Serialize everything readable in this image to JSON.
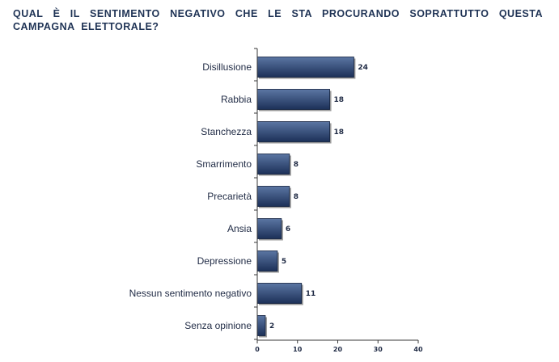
{
  "chart_data": {
    "type": "bar",
    "orientation": "horizontal",
    "title": "QUAL È IL SENTIMENTO NEGATIVO CHE LE STA PROCURANDO SOPRATTUTTO QUESTA CAMPAGNA ELETTORALE?",
    "categories": [
      "Disillusione",
      "Rabbia",
      "Stanchezza",
      "Smarrimento",
      "Precarietà",
      "Ansia",
      "Depressione",
      "Nessun sentimento negativo",
      "Senza opinione"
    ],
    "values": [
      24,
      18,
      18,
      8,
      8,
      6,
      5,
      11,
      2
    ],
    "value_labels": [
      "24",
      "18",
      "18",
      "8",
      "8",
      "6",
      "5",
      "11",
      "2"
    ],
    "xlim": [
      0,
      40
    ],
    "xticks": [
      0,
      10,
      20,
      30,
      40
    ],
    "xtick_labels": [
      "0",
      "10",
      "20",
      "30",
      "40"
    ],
    "xlabel": "",
    "ylabel": "",
    "grid": false,
    "legend": "none",
    "colors": {
      "bar_light": "#5b76a3",
      "bar_dark": "#1c3058",
      "bar_border": "#0f1e3c",
      "shadow": "#9a9a9a",
      "axis": "#3a3a3a",
      "text": "#1f2a44"
    }
  }
}
